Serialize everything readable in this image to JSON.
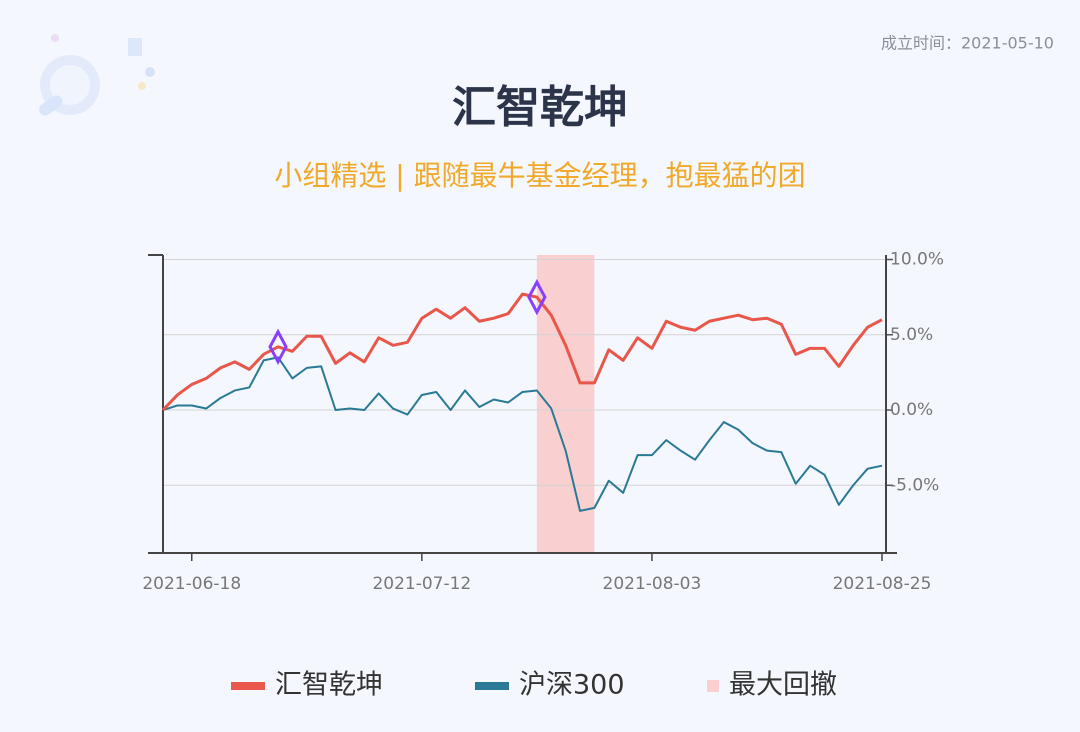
{
  "header": {
    "founded": "成立时间：2021-05-10",
    "title": "汇智乾坤",
    "subtitle": "小组精选 | 跟随最牛基金经理，抱最猛的团"
  },
  "chart_data": {
    "type": "line",
    "categories": [
      null,
      null,
      "2021-06-18",
      null,
      null,
      null,
      null,
      null,
      null,
      null,
      null,
      null,
      null,
      null,
      null,
      null,
      null,
      null,
      "2021-07-12",
      null,
      null,
      null,
      null,
      null,
      null,
      null,
      null,
      null,
      null,
      null,
      null,
      null,
      null,
      null,
      "2021-08-03",
      null,
      null,
      null,
      null,
      null,
      null,
      null,
      null,
      null,
      null,
      null,
      null,
      null,
      null,
      null,
      "2021-08-25"
    ],
    "series": [
      {
        "name": "汇智乾坤",
        "color": "#e8574a",
        "values": [
          0,
          1.0,
          1.7,
          2.1,
          2.8,
          3.2,
          2.7,
          3.7,
          4.2,
          3.9,
          4.9,
          4.9,
          3.1,
          3.8,
          3.2,
          4.8,
          4.3,
          4.5,
          6.1,
          6.7,
          6.1,
          6.8,
          5.9,
          6.1,
          6.4,
          7.7,
          7.5,
          6.3,
          4.3,
          1.8,
          1.8,
          4.0,
          3.3,
          4.8,
          4.1,
          5.9,
          5.5,
          5.3,
          5.9,
          6.1,
          6.3,
          6.0,
          6.1,
          5.7,
          3.7,
          4.1,
          4.1,
          2.9,
          4.3,
          5.5,
          6.0
        ]
      },
      {
        "name": "沪深300",
        "color": "#2a7a95",
        "values": [
          0,
          0.3,
          0.3,
          0.1,
          0.8,
          1.3,
          1.5,
          3.3,
          3.5,
          2.1,
          2.8,
          2.9,
          0.0,
          0.1,
          0.0,
          1.1,
          0.1,
          -0.3,
          1.0,
          1.2,
          0.0,
          1.3,
          0.2,
          0.7,
          0.5,
          1.2,
          1.3,
          0.1,
          -2.7,
          -6.7,
          -6.5,
          -4.7,
          -5.5,
          -3.0,
          -3.0,
          -2.0,
          -2.7,
          -3.3,
          -2.0,
          -0.8,
          -1.3,
          -2.2,
          -2.7,
          -2.8,
          -4.9,
          -3.7,
          -4.3,
          -6.3,
          -5.0,
          -3.9,
          -3.7
        ]
      }
    ],
    "highlight": {
      "name": "最大回撤",
      "color": "#f9cfcf",
      "range": [
        26,
        30
      ]
    },
    "markers": {
      "series": 0,
      "color": "#8a3ffc",
      "indices": [
        8,
        26
      ]
    },
    "ylim": [
      -9.5,
      10.3
    ],
    "yticks": [
      {
        "value": 10,
        "label": "10.0%"
      },
      {
        "value": 5,
        "label": "5.0%"
      },
      {
        "value": 0,
        "label": "0.0%"
      },
      {
        "value": -5,
        "label": "-5.0%"
      }
    ],
    "yaxis_side": "right",
    "grid": true
  }
}
